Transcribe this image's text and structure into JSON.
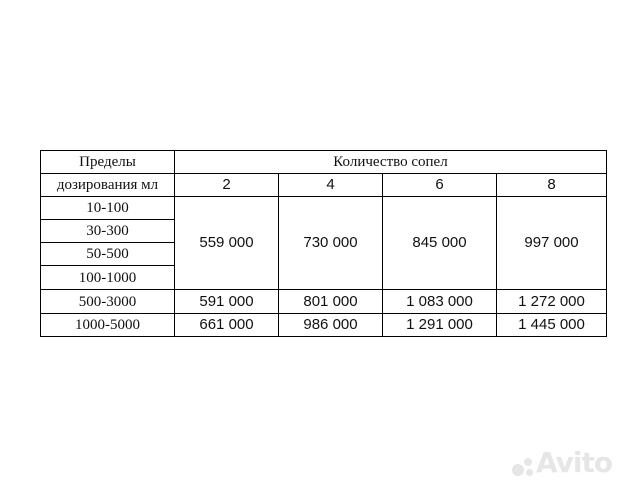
{
  "table": {
    "header_left_line1": "Пределы",
    "header_left_line2": "дозирования мл",
    "header_group": "Количество сопел",
    "nozzle_counts": [
      "2",
      "4",
      "6",
      "8"
    ],
    "merged_ranges": [
      "10-100",
      "30-300",
      "50-500",
      "100-1000"
    ],
    "merged_prices": [
      "559 000",
      "730 000",
      "845 000",
      "997 000"
    ],
    "rows": [
      {
        "range": "500-3000",
        "prices": [
          "591 000",
          "801 000",
          "1 083 000",
          "1 272 000"
        ]
      },
      {
        "range": "1000-5000",
        "prices": [
          "661 000",
          "986 000",
          "1 291 000",
          "1 445 000"
        ]
      }
    ]
  },
  "watermark": "Avito"
}
